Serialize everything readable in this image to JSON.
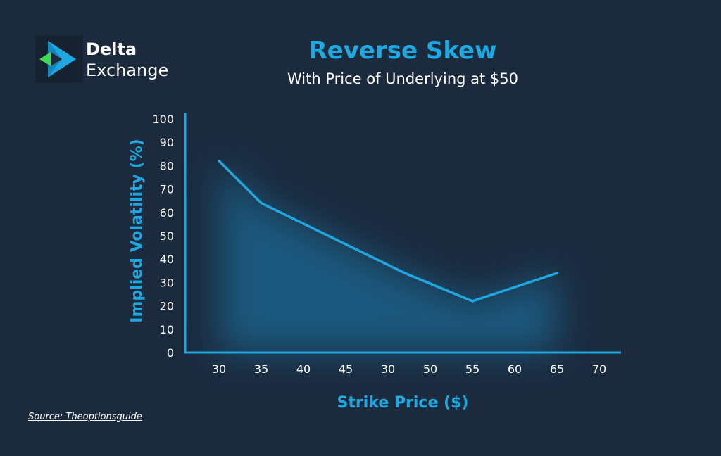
{
  "brand": {
    "name_line1": "Delta",
    "name_line2": "Exchange",
    "icon": "delta-exchange-logo-icon",
    "colors": {
      "blue": "#1fa8e0",
      "green": "#3ddc54"
    }
  },
  "source": "Source: Theoptionsguide",
  "colors": {
    "background": "#1b2a3d",
    "accent": "#1fa8e0",
    "text": "#ffffff"
  },
  "chart_data": {
    "type": "line",
    "title": "Reverse Skew",
    "subtitle": "With Price of Underlying at $50",
    "xlabel": "Strike Price ($)",
    "ylabel": "Implied Volatility (%)",
    "categories": [
      "30",
      "35",
      "40",
      "45",
      "30",
      "50",
      "55",
      "60",
      "65",
      "70"
    ],
    "ylim": [
      0,
      100
    ],
    "yticks": [
      0,
      10,
      20,
      30,
      40,
      50,
      60,
      70,
      80,
      90,
      100
    ],
    "series": [
      {
        "x": [
          30,
          35,
          52,
          60,
          70
        ],
        "y": [
          82,
          64,
          34,
          22,
          34
        ]
      }
    ],
    "grid": false,
    "legend": "none",
    "line_color": "#1fa8e0"
  }
}
